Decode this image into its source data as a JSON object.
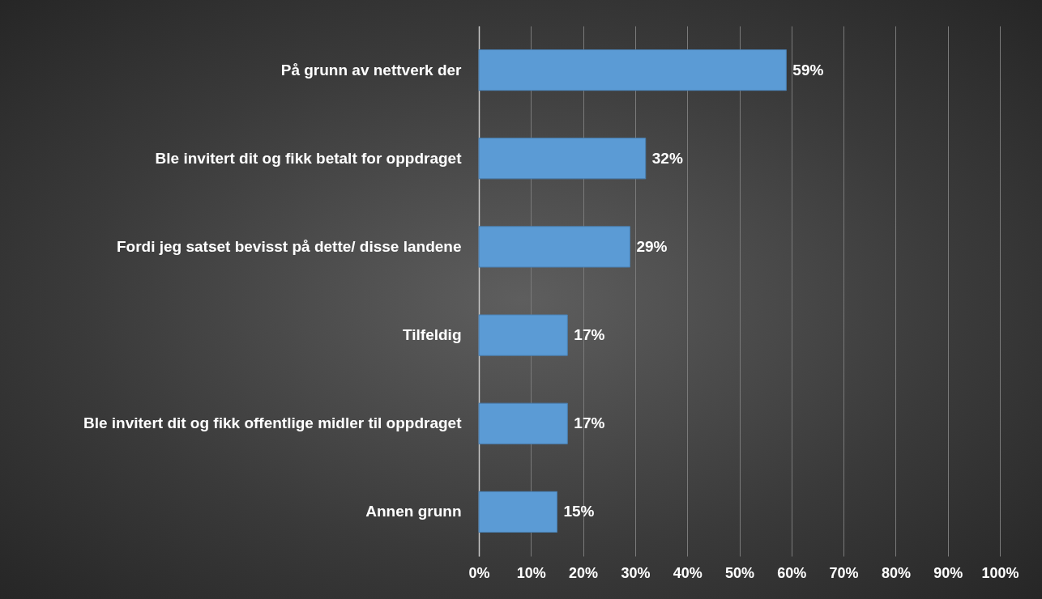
{
  "chart_data": {
    "type": "bar",
    "orientation": "horizontal",
    "categories": [
      "På grunn av nettverk der",
      "Ble invitert dit og fikk betalt for oppdraget",
      "Fordi jeg satset bevisst på dette/ disse landene",
      "Tilfeldig",
      "Ble invitert dit og fikk offentlige midler til oppdraget",
      "Annen grunn"
    ],
    "values": [
      59,
      32,
      29,
      17,
      17,
      15
    ],
    "value_labels": [
      "59%",
      "32%",
      "29%",
      "17%",
      "17%",
      "15%"
    ],
    "color": "#5b9bd5",
    "xlim": [
      0,
      100
    ],
    "xticks": [
      {
        "value": 0,
        "label": "0%"
      },
      {
        "value": 10,
        "label": "10%"
      },
      {
        "value": 20,
        "label": "20%"
      },
      {
        "value": 30,
        "label": "30%"
      },
      {
        "value": 40,
        "label": "40%"
      },
      {
        "value": 50,
        "label": "50%"
      },
      {
        "value": 60,
        "label": "60%"
      },
      {
        "value": 70,
        "label": "70%"
      },
      {
        "value": 80,
        "label": "80%"
      },
      {
        "value": 90,
        "label": "90%"
      },
      {
        "value": 100,
        "label": "100%"
      }
    ],
    "grid": "x"
  }
}
